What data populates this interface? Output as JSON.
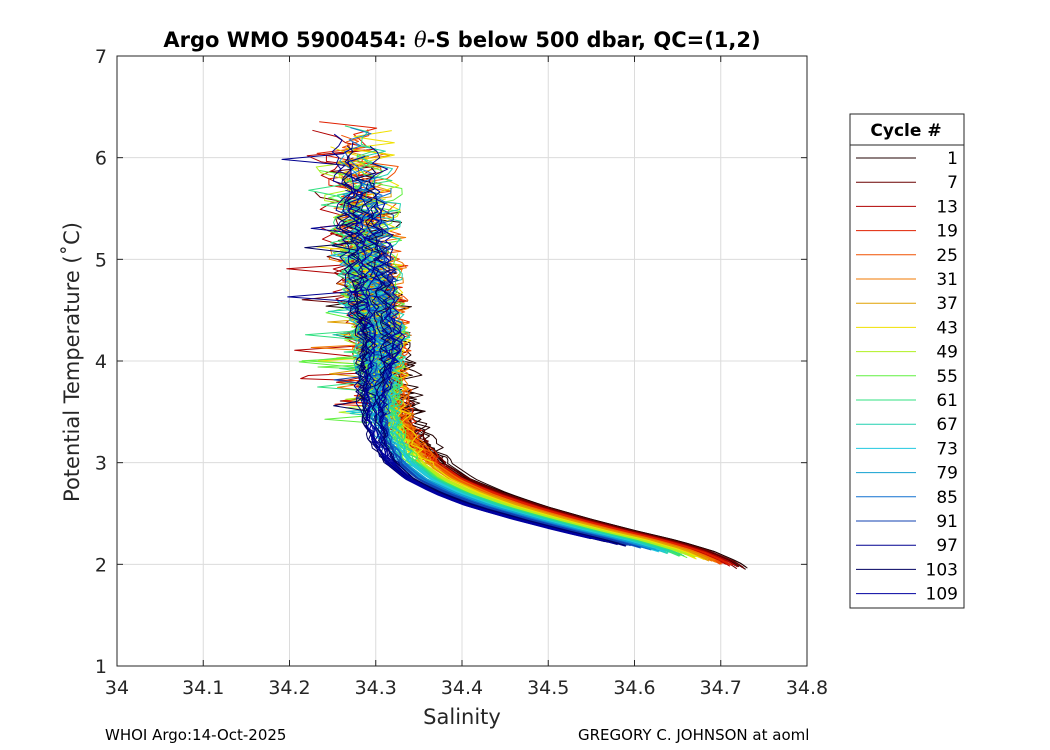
{
  "chart_data": {
    "type": "line",
    "title": "Argo WMO 5900454: θ-S below 500 dbar,  QC=(1,2)",
    "title_parts": {
      "prefix": "Argo WMO 5900454: ",
      "theta": "θ",
      "suffix": "-S below 500 dbar,  QC=(1,2)"
    },
    "xlabel": "Salinity",
    "ylabel": "Potential Temperature (˚C)",
    "xlim": [
      34,
      34.8
    ],
    "ylim": [
      1,
      7
    ],
    "xticks": [
      "34",
      "34.1",
      "34.2",
      "34.3",
      "34.4",
      "34.5",
      "34.6",
      "34.7",
      "34.8"
    ],
    "yticks": [
      "1",
      "2",
      "3",
      "4",
      "5",
      "6",
      "7"
    ],
    "grid": true,
    "legend": {
      "title": "Cycle #",
      "placement": "right-outside",
      "entries": [
        "1",
        "7",
        "13",
        "19",
        "25",
        "31",
        "37",
        "43",
        "49",
        "55",
        "61",
        "67",
        "73",
        "79",
        "85",
        "91",
        "97",
        "103",
        "109"
      ],
      "colors": [
        "#200000",
        "#6a0000",
        "#b00000",
        "#e02000",
        "#f05000",
        "#f07800",
        "#e0a000",
        "#f0e000",
        "#b0f020",
        "#60f040",
        "#30e080",
        "#20d0b0",
        "#20c8e0",
        "#10a0d0",
        "#1070d0",
        "#1040b0",
        "#000090",
        "#000060",
        "#0000a0"
      ]
    },
    "series_shape": {
      "description": "Profiles of potential temperature vs salinity for cycles 1-109",
      "mean_curve": [
        {
          "s": 34.735,
          "t": 1.93
        },
        {
          "s": 34.72,
          "t": 2.02
        },
        {
          "s": 34.69,
          "t": 2.13
        },
        {
          "s": 34.65,
          "t": 2.23
        },
        {
          "s": 34.6,
          "t": 2.33
        },
        {
          "s": 34.55,
          "t": 2.44
        },
        {
          "s": 34.5,
          "t": 2.56
        },
        {
          "s": 34.45,
          "t": 2.7
        },
        {
          "s": 34.41,
          "t": 2.84
        },
        {
          "s": 34.38,
          "t": 3.0
        },
        {
          "s": 34.355,
          "t": 3.2
        },
        {
          "s": 34.335,
          "t": 3.45
        },
        {
          "s": 34.32,
          "t": 3.75
        },
        {
          "s": 34.31,
          "t": 4.05
        },
        {
          "s": 34.3,
          "t": 4.4
        },
        {
          "s": 34.295,
          "t": 4.8
        },
        {
          "s": 34.29,
          "t": 5.2
        },
        {
          "s": 34.285,
          "t": 5.6
        },
        {
          "s": 34.28,
          "t": 5.95
        },
        {
          "s": 34.275,
          "t": 6.25
        }
      ]
    }
  },
  "footer": {
    "left": "WHOI Argo:14-Oct-2025",
    "right": "GREGORY C. JOHNSON at aoml"
  }
}
